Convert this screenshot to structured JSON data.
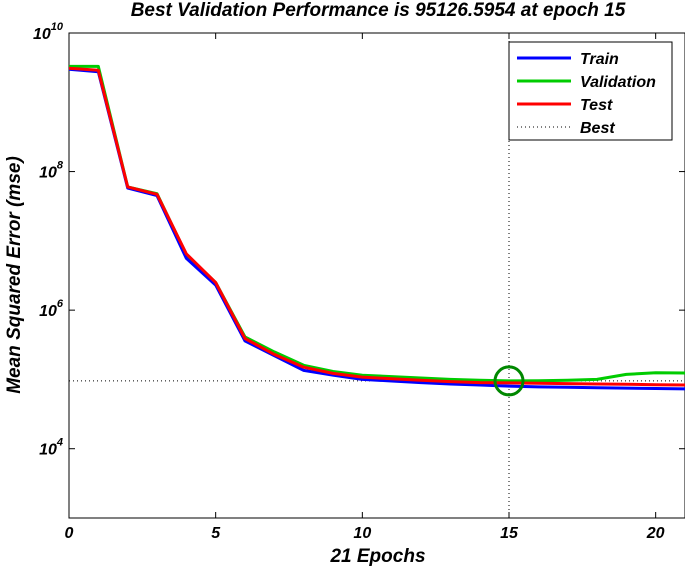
{
  "chart_data": {
    "type": "line",
    "title": "Best Validation Performance is 95126.5954 at epoch 15",
    "xlabel": "21 Epochs",
    "ylabel": "Mean Squared Error  (mse)",
    "yscale": "log",
    "xlim": [
      0,
      21
    ],
    "ylim_log10": [
      3,
      10
    ],
    "x_ticks": [
      0,
      5,
      10,
      15,
      20
    ],
    "y_ticks": [
      {
        "base": "10",
        "exp": "4",
        "log": 4
      },
      {
        "base": "10",
        "exp": "6",
        "log": 6
      },
      {
        "base": "10",
        "exp": "8",
        "log": 8
      },
      {
        "base": "10",
        "exp": "10",
        "log": 10
      }
    ],
    "x": [
      0,
      1,
      2,
      3,
      4,
      5,
      6,
      7,
      8,
      9,
      10,
      11,
      12,
      13,
      14,
      15,
      16,
      17,
      18,
      19,
      20,
      21
    ],
    "series": [
      {
        "name": "Train",
        "color": "#0000ff",
        "values": [
          3000000000,
          2750000000,
          58000000,
          45000000,
          5600000,
          2300000,
          360000,
          220000,
          135000,
          115000,
          100000,
          95000,
          90000,
          86000,
          83000,
          80000,
          78000,
          77000,
          76000,
          75000,
          74000,
          73000
        ]
      },
      {
        "name": "Validation",
        "color": "#00cc00",
        "values": [
          3300000000,
          3300000000,
          60000000,
          48000000,
          6300000,
          2500000,
          410000,
          250000,
          160000,
          130000,
          115000,
          110000,
          105000,
          100000,
          97000,
          95127,
          96000,
          97000,
          100000,
          118000,
          125000,
          124000
        ]
      },
      {
        "name": "Test",
        "color": "#ff0000",
        "values": [
          3100000000,
          2900000000,
          60000000,
          47000000,
          6500000,
          2500000,
          390000,
          230000,
          150000,
          122000,
          108000,
          102000,
          97000,
          93000,
          90000,
          89000,
          88000,
          87000,
          86000,
          85000,
          84000,
          83000
        ]
      }
    ],
    "best": {
      "label": "Best",
      "epoch": 15,
      "value": 95126.5954,
      "marker_color": "#008800"
    },
    "legend": [
      "Train",
      "Validation",
      "Test",
      "Best"
    ],
    "legend_position": "top-right"
  }
}
